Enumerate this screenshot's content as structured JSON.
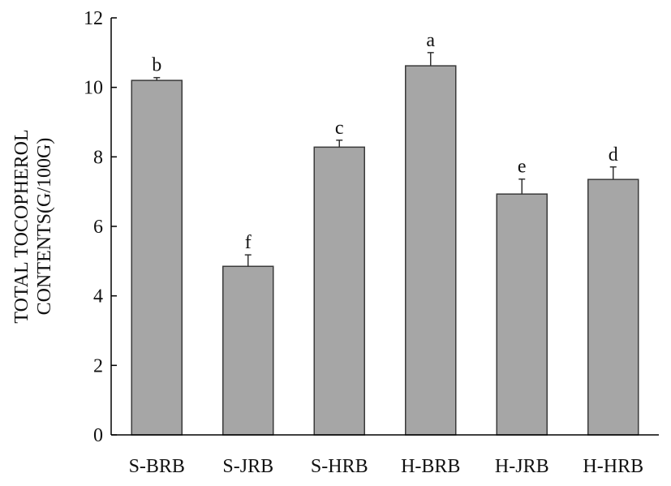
{
  "chart_data": {
    "type": "bar",
    "title": "",
    "xlabel": "",
    "ylabel_lines": [
      "TOTAL TOCOPHEROL",
      "CONTENTS(G/100G)"
    ],
    "categories": [
      "S-BRB",
      "S-JRB",
      "S-HRB",
      "H-BRB",
      "H-JRB",
      "H-HRB"
    ],
    "values": [
      10.2,
      4.85,
      8.28,
      10.62,
      6.93,
      7.35
    ],
    "errors": [
      0.08,
      0.33,
      0.2,
      0.38,
      0.43,
      0.36
    ],
    "significance_labels": [
      "b",
      "f",
      "c",
      "a",
      "e",
      "d"
    ],
    "ylim": [
      0,
      12
    ],
    "yticks": [
      0,
      2,
      4,
      6,
      8,
      10,
      12
    ],
    "ytick_labels": [
      "0",
      "2",
      "4",
      "6",
      "8",
      "10",
      "12"
    ],
    "grid": false,
    "legend": "none",
    "colors": {
      "bar_fill": "#a6a6a6",
      "bar_stroke": "#3a3a3a",
      "axis": "#000000",
      "error_bar": "#333333",
      "text": "#111111"
    }
  }
}
